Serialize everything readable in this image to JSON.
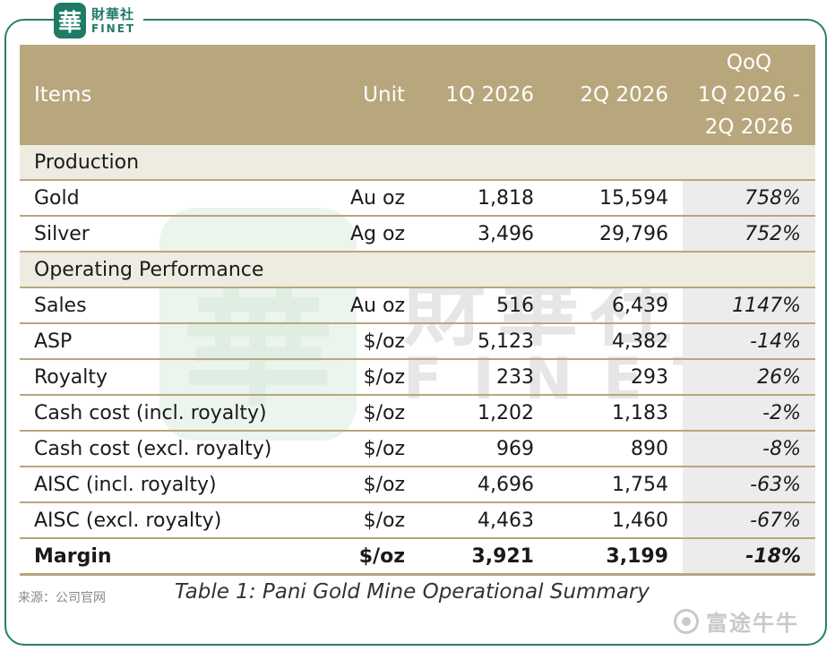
{
  "logo": {
    "mark": "華",
    "cn": "財華社",
    "en": "FINET"
  },
  "table": {
    "headers": {
      "items": "Items",
      "unit": "Unit",
      "q1": "1Q 2026",
      "q2": "2Q 2026",
      "qoq_line1": "QoQ",
      "qoq_line2": "1Q 2026 -",
      "qoq_line3": "2Q 2026"
    },
    "sections": {
      "production": "Production",
      "operating": "Operating Performance"
    },
    "rows": [
      {
        "label": "Gold",
        "unit": "Au oz",
        "q1": "1,818",
        "q2": "15,594",
        "qoq": "758%"
      },
      {
        "label": "Silver",
        "unit": "Ag oz",
        "q1": "3,496",
        "q2": "29,796",
        "qoq": "752%"
      },
      {
        "label": "Sales",
        "unit": "Au oz",
        "q1": "516",
        "q2": "6,439",
        "qoq": "1147%"
      },
      {
        "label": "ASP",
        "unit": "$/oz",
        "q1": "5,123",
        "q2": "4,382",
        "qoq": "-14%"
      },
      {
        "label": "Royalty",
        "unit": "$/oz",
        "q1": "233",
        "q2": "293",
        "qoq": "26%"
      },
      {
        "label": "Cash cost (incl. royalty)",
        "unit": "$/oz",
        "q1": "1,202",
        "q2": "1,183",
        "qoq": "-2%"
      },
      {
        "label": "Cash cost (excl. royalty)",
        "unit": "$/oz",
        "q1": "969",
        "q2": "890",
        "qoq": "-8%"
      },
      {
        "label": "AISC (incl. royalty)",
        "unit": "$/oz",
        "q1": "4,696",
        "q2": "1,754",
        "qoq": "-63%"
      },
      {
        "label": "AISC (excl. royalty)",
        "unit": "$/oz",
        "q1": "4,463",
        "q2": "1,460",
        "qoq": "-67%"
      },
      {
        "label": "Margin",
        "unit": "$/oz",
        "q1": "3,921",
        "q2": "3,199",
        "qoq": "-18%"
      }
    ]
  },
  "watermark": {
    "seal": "華",
    "cn": "財華社",
    "en": "FINET"
  },
  "source": "来源：公司官网",
  "caption": "Table 1: Pani Gold Mine Operational Summary",
  "brand": {
    "name": "富途牛牛"
  },
  "colors": {
    "header": "#b8a77c",
    "frame": "#27806b",
    "section": "#eeebe0"
  }
}
